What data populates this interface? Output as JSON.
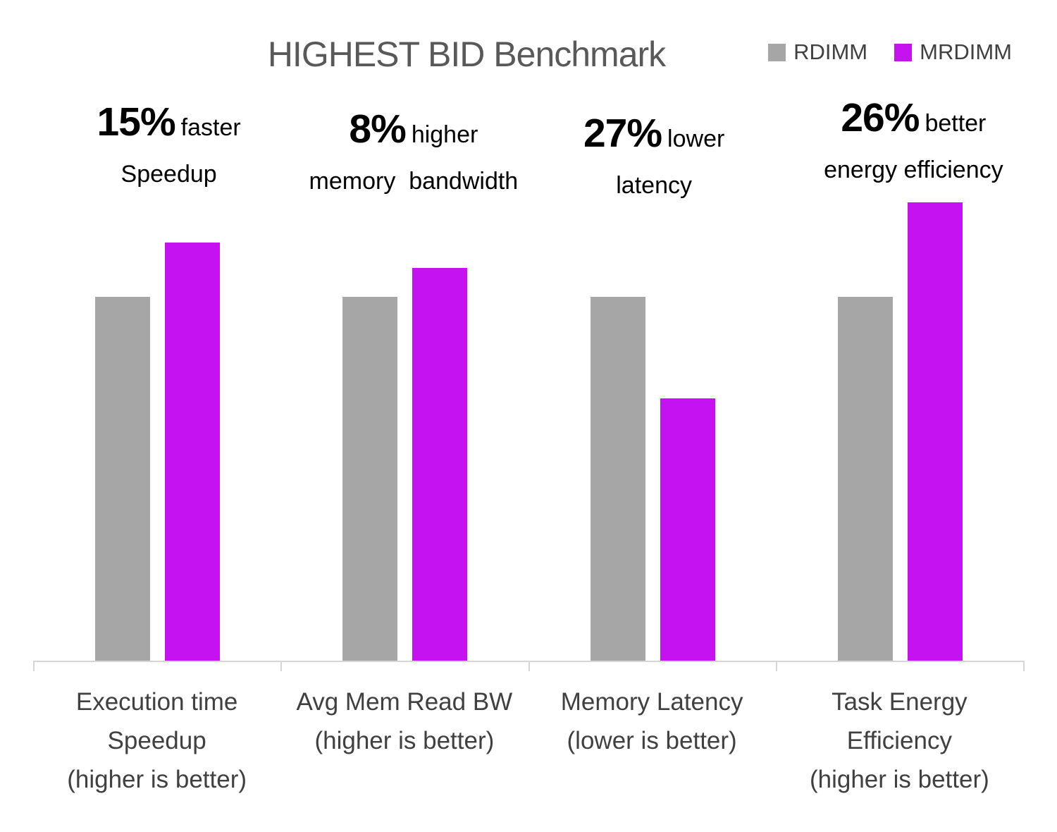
{
  "chart_data": {
    "type": "bar",
    "title": "HIGHEST BID Benchmark",
    "legend_position": "top-right",
    "grid": false,
    "axis_color": "#d6d6d6",
    "title_color": "#595959",
    "label_color": "#404040",
    "legend": [
      {
        "label": "RDIMM",
        "color": "#A6A6A6"
      },
      {
        "label": "MRDIMM",
        "color": "#C512F0"
      }
    ],
    "series": [
      {
        "name": "RDIMM",
        "color": "#A6A6A6",
        "values": [
          1.0,
          1.0,
          1.0,
          1.0
        ]
      },
      {
        "name": "MRDIMM",
        "color": "#C512F0",
        "values": [
          1.15,
          1.08,
          0.72,
          1.26
        ]
      }
    ],
    "ylim": [
      0,
      1.45
    ],
    "value_basis": "relative bar height, RDIMM = 1.0 (estimated from pixels; MRDIMM reflects callout percentages)",
    "categories": [
      {
        "label_lines": [
          "Execution time",
          "Speedup",
          "(higher is better)"
        ],
        "callout": {
          "value": "15%",
          "qualifier": "faster",
          "metric": "Speedup"
        }
      },
      {
        "label_lines": [
          "Avg Mem Read BW",
          "(higher is better)"
        ],
        "callout": {
          "value": "8%",
          "qualifier": "higher",
          "metric": "memory  bandwidth"
        }
      },
      {
        "label_lines": [
          "Memory Latency",
          "(lower is better)"
        ],
        "callout": {
          "value": "27%",
          "qualifier": "lower",
          "metric": "latency"
        }
      },
      {
        "label_lines": [
          "Task Energy",
          "Efficiency",
          "(higher is better)"
        ],
        "callout": {
          "value": "26%",
          "qualifier": "better",
          "metric": "energy efficiency"
        }
      }
    ]
  }
}
